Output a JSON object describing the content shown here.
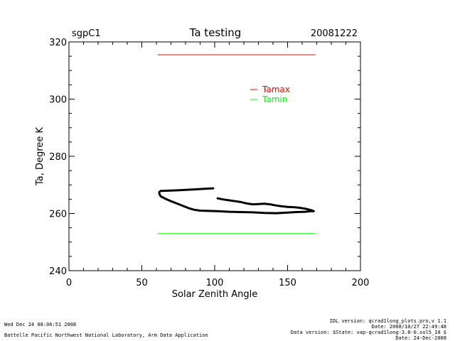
{
  "header": {
    "site": "sgpC1",
    "title": "Ta testing",
    "date": "20081222"
  },
  "footer": {
    "left_line1": "Wed Dec 24 08:06:51 2008",
    "left_line2": "Battelle Pacific Northwest National Laboratory, Arm Data Application",
    "right_line1": "IDL version: qcrad1long_plots.pro,v 1.1",
    "right_line2": "Date: 2008/10/27 22:49:48",
    "right_line3": "Data version: $State: vap-qcrad1long-3.8-0.sol5_10 $",
    "right_line4": "Date: 24-Dec-2008"
  },
  "colors": {
    "background": "#ffffff",
    "axis": "#000000",
    "tamax": "#ff0000",
    "tamin": "#00ff00",
    "trace": "#000000"
  },
  "chart_data": {
    "type": "line",
    "title": "Ta testing",
    "xlabel": "Solar Zenith Angle",
    "ylabel": "Ta, Degree K",
    "xlim": [
      0,
      200
    ],
    "ylim": [
      240,
      320
    ],
    "xticks": [
      0,
      50,
      100,
      150,
      200
    ],
    "yticks": [
      240,
      260,
      280,
      300,
      320
    ],
    "x_minor_step": 10,
    "y_minor_step": 5,
    "legend_position": "top-right",
    "legend": [
      {
        "label": "Tamax",
        "color": "#ff0000"
      },
      {
        "label": "Tamin",
        "color": "#00ff00"
      }
    ],
    "series": [
      {
        "name": "Tamax",
        "color": "#ff0000",
        "x": [
          61,
          169
        ],
        "y": [
          315.5,
          315.5
        ],
        "width": 1
      },
      {
        "name": "Tamin",
        "color": "#00ff00",
        "x": [
          61,
          169
        ],
        "y": [
          253.0,
          253.0
        ],
        "width": 1
      },
      {
        "color": "#000000",
        "width": 3,
        "x": [
          99,
          92,
          85,
          78,
          70,
          63,
          62,
          62,
          63,
          66,
          70,
          74,
          78,
          82,
          86,
          90,
          96,
          102,
          110,
          118,
          126,
          134,
          142,
          150,
          156,
          162,
          166,
          168,
          166,
          162,
          158,
          154,
          150,
          146,
          142,
          138,
          134,
          130,
          126,
          122,
          118,
          114,
          110,
          106,
          102
        ],
        "y": [
          268.8,
          268.6,
          268.4,
          268.2,
          268.0,
          267.9,
          267.5,
          266.8,
          266.0,
          265.2,
          264.3,
          263.5,
          262.7,
          261.9,
          261.3,
          261.0,
          260.9,
          260.8,
          260.6,
          260.5,
          260.4,
          260.2,
          260.1,
          260.3,
          260.5,
          260.6,
          260.8,
          260.8,
          261.2,
          261.7,
          262.0,
          262.2,
          262.3,
          262.5,
          262.8,
          263.2,
          263.4,
          263.3,
          263.2,
          263.5,
          264.0,
          264.3,
          264.6,
          264.9,
          265.3
        ]
      }
    ]
  }
}
